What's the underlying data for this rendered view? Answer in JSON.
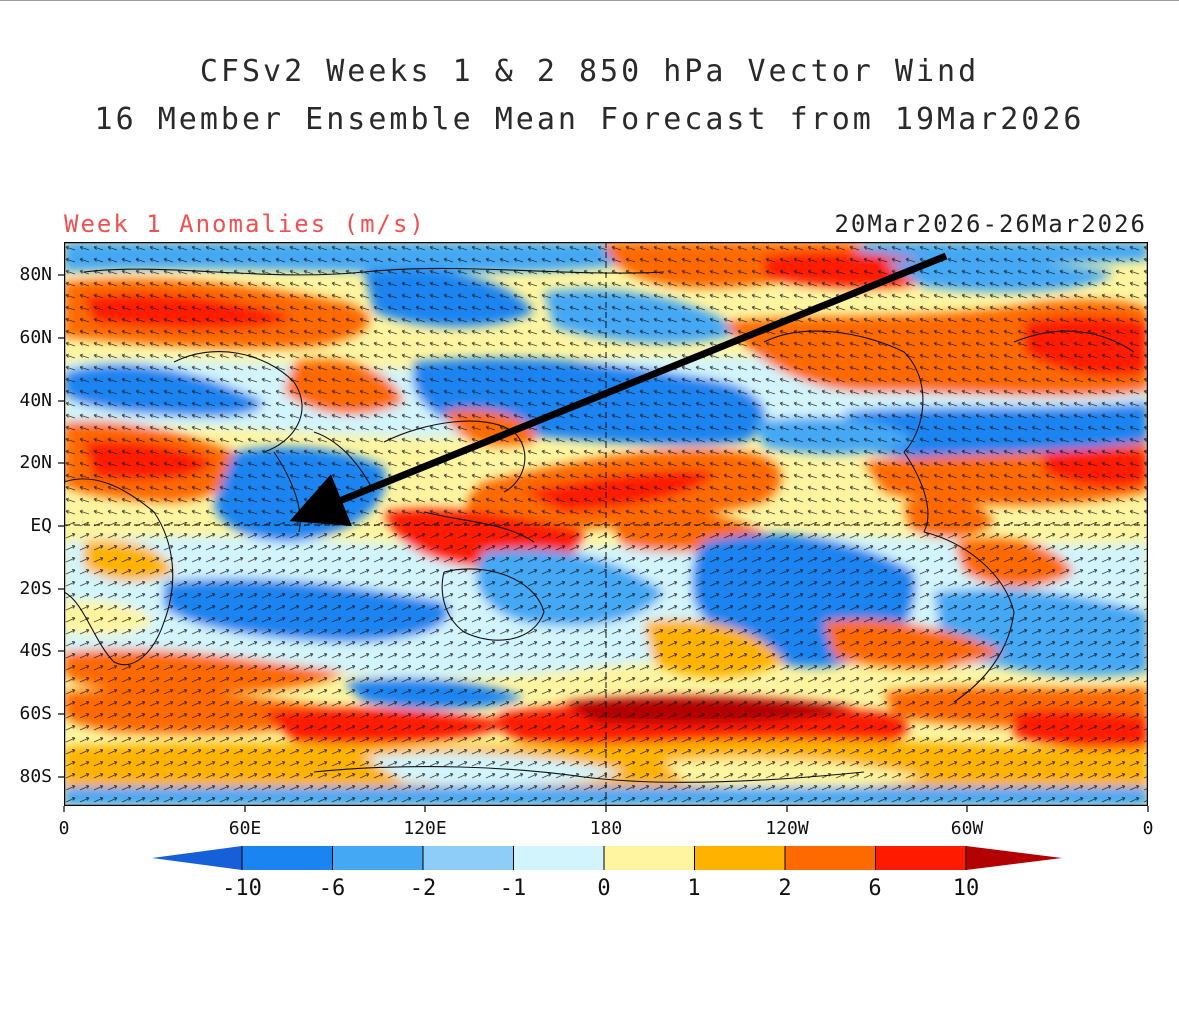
{
  "title": {
    "line1": "CFSv2 Weeks 1 & 2 850 hPa Vector Wind",
    "line2": "16 Member Ensemble Mean Forecast from 19Mar2026"
  },
  "panel": {
    "label": "Week 1 Anomalies (m/s)",
    "date_range": "20Mar2026-26Mar2026"
  },
  "axes": {
    "lat_labels": [
      "80N",
      "60N",
      "40N",
      "20N",
      "EQ",
      "20S",
      "40S",
      "60S",
      "80S"
    ],
    "lon_labels": [
      "0",
      "60E",
      "120E",
      "180",
      "120W",
      "60W",
      "0"
    ]
  },
  "colorbar": {
    "labels": [
      "-10",
      "-6",
      "-2",
      "-1",
      "0",
      "1",
      "2",
      "6",
      "10"
    ],
    "colors": [
      "#1560d8",
      "#1a84f0",
      "#45a8f5",
      "#8ecdf7",
      "#d2f4fc",
      "#fff5a0",
      "#ffb300",
      "#ff6a00",
      "#ff1a00",
      "#b30000"
    ]
  },
  "annotation": {
    "arrow": "black arrow pointing from Arctic/North Atlantic toward the equatorial Indian Ocean"
  }
}
